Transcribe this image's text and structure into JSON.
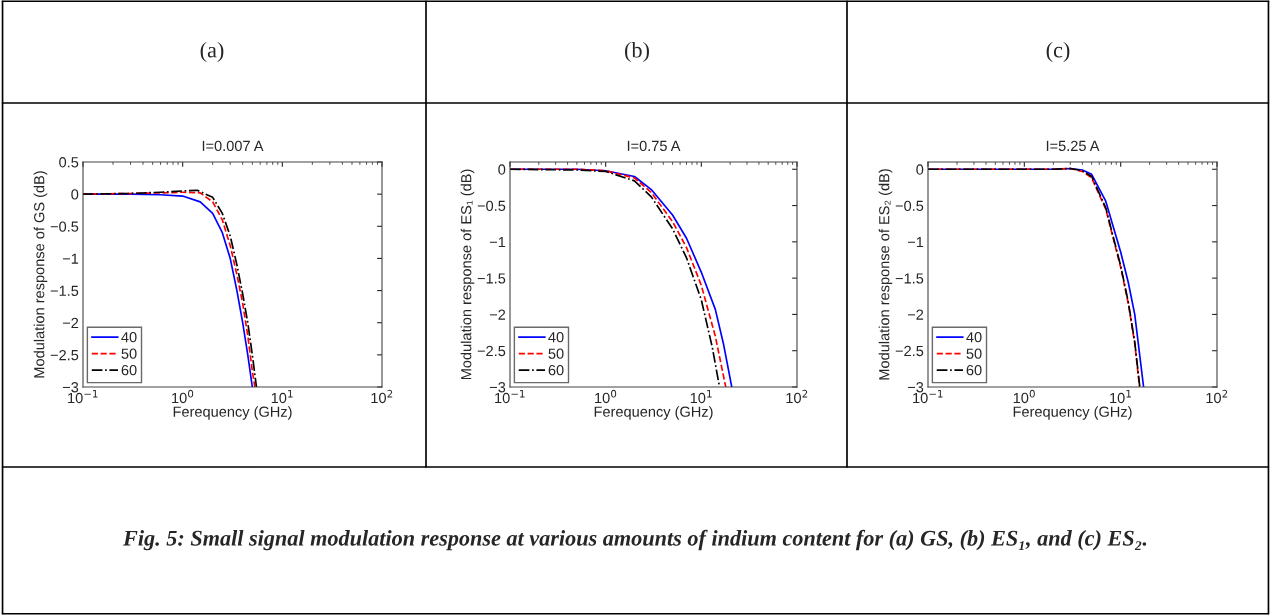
{
  "chart_data": [
    {
      "type": "line",
      "title": "I=0.007 A",
      "xlabel": "Ferequency (GHz)",
      "ylabel": "Modulation response of GS (dB)",
      "annotations": [
        "(a)",
        "Fig. 5: Small signal modulation response at various amounts of indium content for (a) GS, (b) ES₁, and (c) ES₂."
      ],
      "log": "x",
      "xlim": [
        0.1,
        100
      ],
      "ylim": [
        -3,
        0.5
      ],
      "xticks": [
        {
          "value": 0.1,
          "label": "10$^{−1}$"
        },
        {
          "value": 1,
          "label": "10$^{0}$"
        },
        {
          "value": 10,
          "label": "10$^{1}$"
        },
        {
          "value": 100,
          "label": "10$^{2}$"
        }
      ],
      "yticks": [
        0.5,
        0,
        {
          "value": -0.5,
          "label": "−0.5"
        },
        {
          "value": -1,
          "label": "−1"
        },
        {
          "value": -1.5,
          "label": "−1.5"
        },
        {
          "value": -2,
          "label": "−2"
        },
        {
          "value": -2.5,
          "label": "−2.5"
        },
        {
          "value": -3,
          "label": "−3"
        }
      ],
      "grid": false,
      "legend": "bottom left",
      "series": [
        {
          "name": "40",
          "color": "#0000ff",
          "line_style": "solid",
          "x": [
            0.1,
            0.3,
            0.6,
            1.0,
            1.5,
            2.0,
            2.5,
            3.0,
            3.5,
            4.0,
            4.5,
            5.0
          ],
          "values": [
            0,
            0,
            -0.01,
            -0.03,
            -0.12,
            -0.3,
            -0.6,
            -1.0,
            -1.5,
            -2.0,
            -2.5,
            -3.0
          ]
        },
        {
          "name": "50",
          "color": "#ff0000",
          "line_style": "dashed",
          "x": [
            0.1,
            0.3,
            0.6,
            1.0,
            1.5,
            2.0,
            2.5,
            3.0,
            3.5,
            4.0,
            4.5,
            5.0,
            5.3
          ],
          "values": [
            0,
            0.01,
            0.02,
            0.03,
            0.02,
            -0.12,
            -0.4,
            -0.8,
            -1.25,
            -1.7,
            -2.2,
            -2.75,
            -3.0
          ]
        },
        {
          "name": "60",
          "color": "#000000",
          "line_style": "dashdot",
          "x": [
            0.1,
            0.3,
            0.6,
            1.0,
            1.4,
            2.0,
            2.5,
            3.0,
            3.5,
            4.0,
            4.5,
            5.0,
            5.5
          ],
          "values": [
            0,
            0.01,
            0.03,
            0.05,
            0.06,
            -0.05,
            -0.3,
            -0.65,
            -1.1,
            -1.55,
            -2.0,
            -2.5,
            -3.0
          ]
        }
      ]
    },
    {
      "type": "line",
      "title": "I=0.75 A",
      "xlabel": "Ferequency (GHz)",
      "ylabel": "Modulation response of ES₁ (dB)",
      "annotations": [
        "(b)"
      ],
      "log": "x",
      "xlim": [
        0.1,
        100
      ],
      "ylim": [
        -3,
        0.1
      ],
      "xticks": [
        {
          "value": 0.1,
          "label": "10$^{−1}$"
        },
        {
          "value": 1,
          "label": "10$^{0}$"
        },
        {
          "value": 10,
          "label": "10$^{1}$"
        },
        {
          "value": 100,
          "label": "10$^{2}$"
        }
      ],
      "yticks": [
        0,
        {
          "value": -0.5,
          "label": "−0.5"
        },
        {
          "value": -1,
          "label": "−1"
        },
        {
          "value": -1.5,
          "label": "−1.5"
        },
        {
          "value": -2,
          "label": "−2"
        },
        {
          "value": -2.5,
          "label": "−2.5"
        },
        {
          "value": -3,
          "label": "−3"
        }
      ],
      "grid": false,
      "legend": "bottom left",
      "series": [
        {
          "name": "40",
          "color": "#0000ff",
          "line_style": "solid",
          "x": [
            0.1,
            0.5,
            1,
            2,
            3,
            5,
            7,
            10,
            14,
            17,
            20.8
          ],
          "values": [
            0,
            0,
            -0.02,
            -0.1,
            -0.28,
            -0.63,
            -0.95,
            -1.42,
            -1.93,
            -2.4,
            -3.0
          ]
        },
        {
          "name": "50",
          "color": "#ff0000",
          "line_style": "dashed",
          "x": [
            0.1,
            0.5,
            1,
            2,
            3,
            5,
            7,
            10,
            14,
            18
          ],
          "values": [
            0,
            0,
            -0.02,
            -0.12,
            -0.32,
            -0.72,
            -1.08,
            -1.6,
            -2.3,
            -3.0
          ]
        },
        {
          "name": "60",
          "color": "#000000",
          "line_style": "dashdot",
          "x": [
            0.1,
            0.5,
            1,
            2,
            3,
            5,
            7,
            10,
            13,
            15.5
          ],
          "values": [
            0,
            -0.01,
            -0.03,
            -0.16,
            -0.38,
            -0.82,
            -1.22,
            -1.8,
            -2.45,
            -3.0
          ]
        }
      ]
    },
    {
      "type": "line",
      "title": "I=5.25 A",
      "xlabel": "Ferequency (GHz)",
      "ylabel": "Modulation response of ES₂ (dB)",
      "annotations": [
        "(c)"
      ],
      "log": "x",
      "xlim": [
        0.1,
        100
      ],
      "ylim": [
        -3,
        0.1
      ],
      "xticks": [
        {
          "value": 0.1,
          "label": "10$^{−1}$"
        },
        {
          "value": 1,
          "label": "10$^{0}$"
        },
        {
          "value": 10,
          "label": "10$^{1}$"
        },
        {
          "value": 100,
          "label": "10$^{2}$"
        }
      ],
      "yticks": [
        0,
        {
          "value": -0.5,
          "label": "−0.5"
        },
        {
          "value": -1,
          "label": "−1"
        },
        {
          "value": -1.5,
          "label": "−1.5"
        },
        {
          "value": -2,
          "label": "−2"
        },
        {
          "value": -2.5,
          "label": "−2.5"
        },
        {
          "value": -3,
          "label": "−3"
        }
      ],
      "grid": false,
      "legend": "bottom left",
      "series": [
        {
          "name": "40",
          "color": "#0000ff",
          "line_style": "solid",
          "x": [
            0.1,
            1,
            2,
            3,
            4,
            5,
            7,
            10,
            12,
            14,
            17.3
          ],
          "values": [
            0,
            0,
            0,
            0.01,
            -0.01,
            -0.07,
            -0.44,
            -1.14,
            -1.56,
            -2.0,
            -3.0
          ]
        },
        {
          "name": "50",
          "color": "#ff0000",
          "line_style": "dashed",
          "x": [
            0.1,
            1,
            2,
            3,
            4,
            5,
            7,
            10,
            12,
            14,
            15.7
          ],
          "values": [
            0,
            0,
            0,
            0.01,
            -0.03,
            -0.12,
            -0.55,
            -1.35,
            -1.85,
            -2.4,
            -3.0
          ]
        },
        {
          "name": "60",
          "color": "#000000",
          "line_style": "dashdot",
          "x": [
            0.1,
            1,
            2,
            3,
            4,
            5,
            7,
            10,
            12,
            14,
            15.8
          ],
          "values": [
            0,
            0,
            0,
            0.01,
            -0.02,
            -0.1,
            -0.53,
            -1.33,
            -1.83,
            -2.38,
            -3.0
          ]
        }
      ]
    }
  ]
}
